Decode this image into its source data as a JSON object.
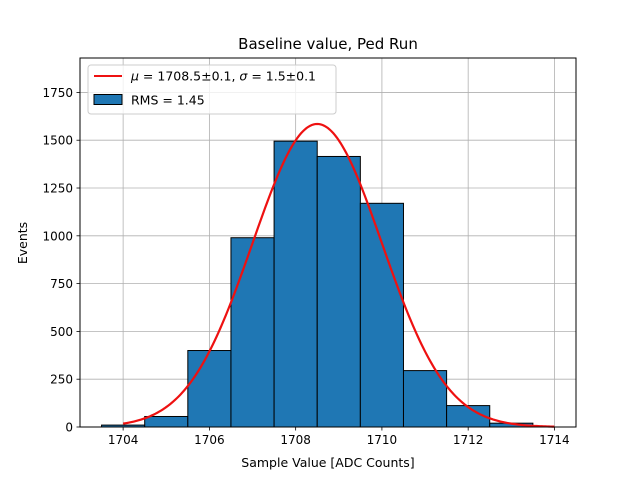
{
  "chart_data": {
    "type": "bar",
    "title": "Baseline value, Ped Run",
    "xlabel": "Sample Value [ADC Counts]",
    "ylabel": "Events",
    "xlim": [
      1703,
      1714.5
    ],
    "ylim": [
      0,
      1930
    ],
    "xticks": [
      1704,
      1706,
      1708,
      1710,
      1712,
      1714
    ],
    "yticks": [
      0,
      250,
      500,
      750,
      1000,
      1250,
      1500,
      1750
    ],
    "grid": true,
    "legend_position": "top-left",
    "histogram": {
      "name": "RMS = 1.45",
      "color": "#1f77b4",
      "bin_width": 1,
      "bin_centers": [
        1704,
        1705,
        1706,
        1707,
        1708,
        1709,
        1710,
        1711,
        1712,
        1713
      ],
      "values": [
        10,
        55,
        400,
        990,
        1495,
        1415,
        1170,
        295,
        112,
        20
      ]
    },
    "fit": {
      "name_prefix": "μ",
      "name_mid": " = 1708.5±0.1, ",
      "name_sigma": "σ",
      "name_suffix": " = 1.5±0.1",
      "color": "#ee1111",
      "mu": 1708.5,
      "sigma": 1.5,
      "amplitude": 1585,
      "x_range": [
        1704,
        1714
      ]
    }
  }
}
